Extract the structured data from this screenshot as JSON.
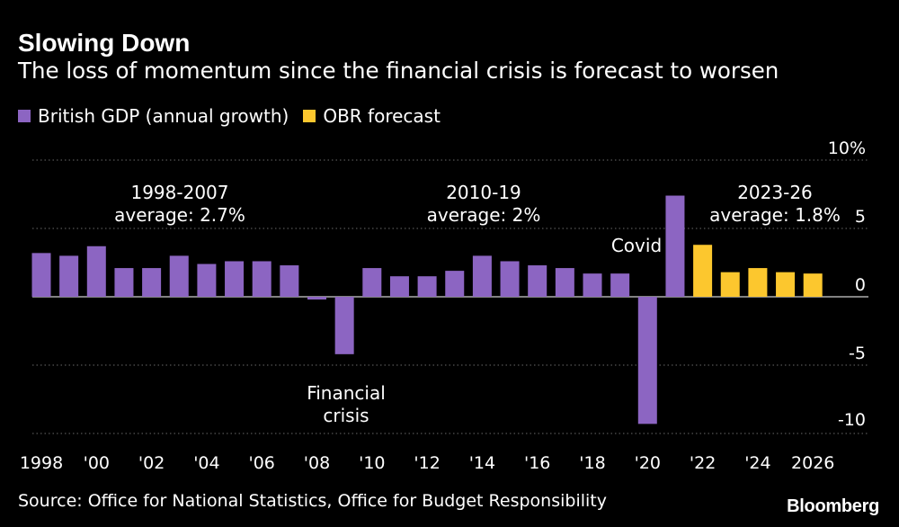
{
  "header": {
    "title": "Slowing Down",
    "subtitle": "The loss of momentum since the financial crisis is forecast to worsen"
  },
  "legend": [
    {
      "label": "British GDP (annual growth)",
      "color": "#8c65c2"
    },
    {
      "label": "OBR forecast",
      "color": "#fcc72e"
    }
  ],
  "footer": {
    "source": "Source: Office for National Statistics, Office for Budget Responsibility",
    "brand": "Bloomberg"
  },
  "chart_data": {
    "type": "bar",
    "title": "Slowing Down",
    "ylabel": "",
    "xlabel": "",
    "ylim": [
      -10,
      10
    ],
    "y_ticks": [
      10,
      5,
      0,
      -5,
      -10
    ],
    "y_tick_labels": [
      "10%",
      "5",
      "0",
      "-5",
      "-10"
    ],
    "x_tick_labels": [
      "1998",
      "'00",
      "'02",
      "'04",
      "'06",
      "'08",
      "'10",
      "'12",
      "'14",
      "'16",
      "'18",
      "'20",
      "'22",
      "'24",
      "2026"
    ],
    "legend_position": "top-left",
    "grid": "dotted horizontal",
    "series": [
      {
        "name": "British GDP (annual growth)",
        "color": "#8c65c2",
        "x": [
          1998,
          1999,
          2000,
          2001,
          2002,
          2003,
          2004,
          2005,
          2006,
          2007,
          2008,
          2009,
          2010,
          2011,
          2012,
          2013,
          2014,
          2015,
          2016,
          2017,
          2018,
          2019,
          2020,
          2021
        ],
        "values": [
          3.2,
          3.0,
          3.7,
          2.1,
          2.1,
          3.0,
          2.4,
          2.6,
          2.6,
          2.3,
          -0.2,
          -4.2,
          2.1,
          1.5,
          1.5,
          1.9,
          3.0,
          2.6,
          2.3,
          2.1,
          1.7,
          1.7,
          -9.3,
          7.4
        ]
      },
      {
        "name": "OBR forecast",
        "color": "#fcc72e",
        "x": [
          2022,
          2023,
          2024,
          2025,
          2026
        ],
        "values": [
          3.8,
          1.8,
          2.1,
          1.8,
          1.7
        ]
      }
    ],
    "annotations": [
      {
        "lines": [
          "1998-2007",
          "average: 2.7%"
        ]
      },
      {
        "lines": [
          "2010-19",
          "average: 2%"
        ]
      },
      {
        "lines": [
          "2023-26",
          "average: 1.8%"
        ]
      },
      {
        "lines": [
          "Covid"
        ]
      },
      {
        "lines": [
          "Financial",
          "crisis"
        ]
      }
    ]
  }
}
